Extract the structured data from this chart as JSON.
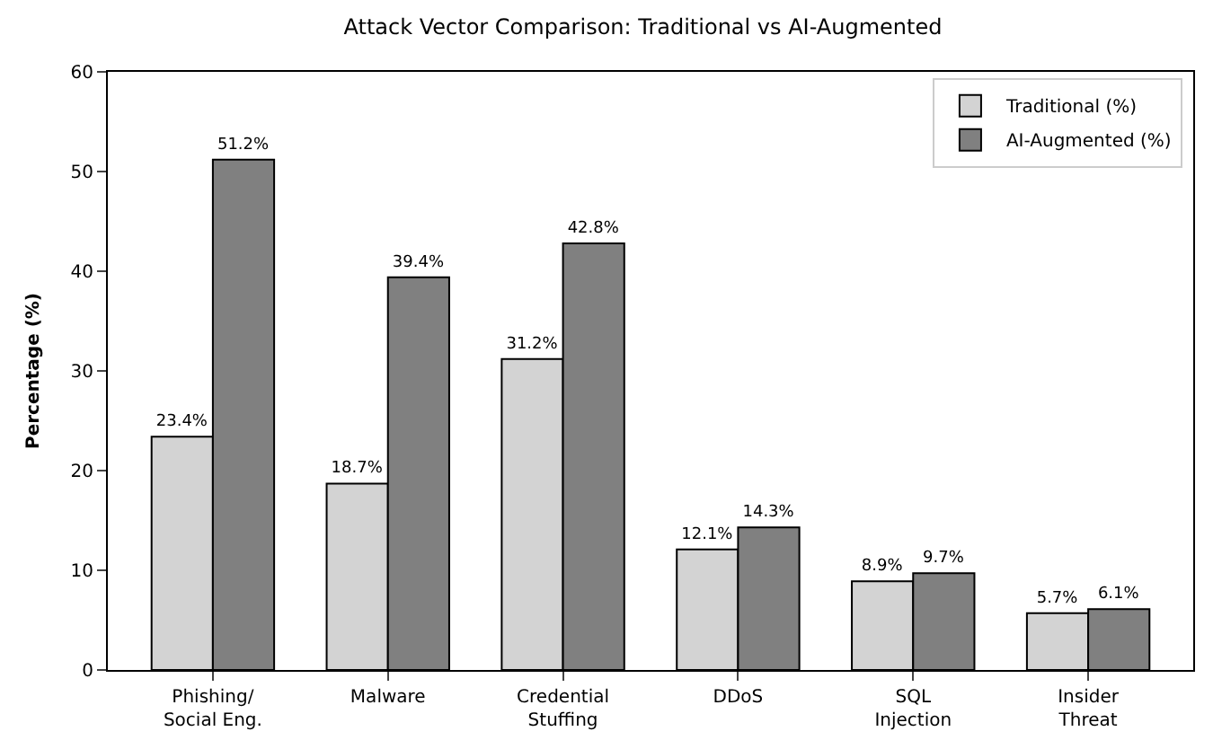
{
  "chart_data": {
    "type": "bar",
    "title": "Attack Vector Comparison: Traditional vs AI-Augmented",
    "ylabel": "Percentage (%)",
    "categories": [
      "Phishing/\nSocial Eng.",
      "Malware",
      "Credential\nStuffing",
      "DDoS",
      "SQL\nInjection",
      "Insider\nThreat"
    ],
    "series": [
      {
        "name": "Traditional (%)",
        "color": "#d3d3d3",
        "values": [
          23.4,
          18.7,
          31.2,
          12.1,
          8.9,
          5.7
        ],
        "value_labels": [
          "23.4%",
          "18.7%",
          "31.2%",
          "12.1%",
          "8.9%",
          "5.7%"
        ]
      },
      {
        "name": "AI-Augmented (%)",
        "color": "#808080",
        "values": [
          51.2,
          39.4,
          42.8,
          14.3,
          9.7,
          6.1
        ],
        "value_labels": [
          "51.2%",
          "39.4%",
          "42.8%",
          "14.3%",
          "9.7%",
          "6.1%"
        ]
      }
    ],
    "ylim": [
      0,
      60
    ],
    "yticks": [
      0,
      10,
      20,
      30,
      40,
      50,
      60
    ],
    "legend": "top right"
  }
}
